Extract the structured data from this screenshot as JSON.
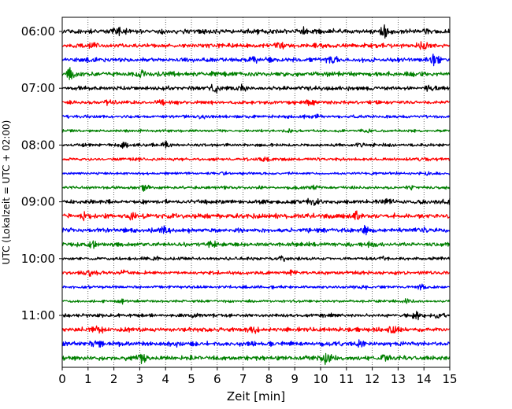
{
  "chart_data": {
    "type": "line",
    "title": "",
    "xlabel": "Zeit  [min]",
    "ylabel": "UTC (Lokalzeit = UTC + 02:00)",
    "xlim": [
      0,
      15
    ],
    "x_ticks": [
      "0",
      "1",
      "2",
      "3",
      "4",
      "5",
      "6",
      "7",
      "8",
      "9",
      "10",
      "11",
      "12",
      "13",
      "14",
      "15"
    ],
    "y_ticks": [
      "06:00",
      "07:00",
      "08:00",
      "09:00",
      "10:00",
      "11:00"
    ],
    "line_minutes": 15,
    "grid": "vertical-dotted",
    "trace_colors": [
      "#000000",
      "#ff0000",
      "#0000ff",
      "#008000"
    ],
    "traces": [
      {
        "start": "06:00",
        "amplitude": 0.55,
        "events": [
          [
            12.5,
            1.0
          ],
          [
            2.1,
            0.45
          ],
          [
            9.3,
            0.4
          ]
        ]
      },
      {
        "start": "06:15",
        "amplitude": 0.5,
        "events": [
          [
            1.3,
            0.45
          ],
          [
            8.4,
            0.55
          ],
          [
            14.0,
            0.5
          ]
        ]
      },
      {
        "start": "06:30",
        "amplitude": 0.5,
        "events": [
          [
            14.4,
            0.8
          ],
          [
            7.4,
            0.45
          ],
          [
            10.5,
            0.4
          ]
        ]
      },
      {
        "start": "06:45",
        "amplitude": 0.5,
        "events": [
          [
            0.3,
            0.7
          ],
          [
            3.0,
            0.6
          ],
          [
            4.1,
            0.5
          ]
        ]
      },
      {
        "start": "07:00",
        "amplitude": 0.45,
        "events": [
          [
            5.9,
            0.9
          ],
          [
            7.0,
            0.4
          ],
          [
            14.3,
            0.4
          ]
        ]
      },
      {
        "start": "07:15",
        "amplitude": 0.4,
        "events": [
          [
            1.8,
            0.4
          ],
          [
            3.8,
            0.4
          ],
          [
            9.5,
            0.35
          ]
        ]
      },
      {
        "start": "07:30",
        "amplitude": 0.35,
        "events": [
          [
            9.9,
            0.35
          ],
          [
            5.4,
            0.3
          ]
        ]
      },
      {
        "start": "07:45",
        "amplitude": 0.3,
        "events": [
          [
            8.8,
            0.3
          ],
          [
            11.8,
            0.3
          ]
        ]
      },
      {
        "start": "08:00",
        "amplitude": 0.35,
        "events": [
          [
            4.0,
            0.5
          ],
          [
            2.4,
            0.4
          ],
          [
            11.5,
            0.3
          ]
        ]
      },
      {
        "start": "08:15",
        "amplitude": 0.35,
        "events": [
          [
            7.9,
            0.35
          ],
          [
            13.9,
            0.35
          ]
        ]
      },
      {
        "start": "08:30",
        "amplitude": 0.3,
        "events": [
          [
            6.2,
            0.3
          ],
          [
            14.1,
            0.3
          ]
        ]
      },
      {
        "start": "08:45",
        "amplitude": 0.35,
        "events": [
          [
            3.2,
            0.4
          ],
          [
            9.8,
            0.35
          ],
          [
            13.5,
            0.3
          ]
        ]
      },
      {
        "start": "09:00",
        "amplitude": 0.45,
        "events": [
          [
            12.6,
            0.6
          ],
          [
            14.9,
            0.55
          ],
          [
            9.7,
            0.45
          ]
        ]
      },
      {
        "start": "09:15",
        "amplitude": 0.55,
        "events": [
          [
            0.9,
            0.6
          ],
          [
            2.6,
            0.5
          ],
          [
            11.4,
            0.6
          ]
        ]
      },
      {
        "start": "09:30",
        "amplitude": 0.5,
        "events": [
          [
            4.0,
            0.5
          ],
          [
            11.8,
            0.5
          ],
          [
            14.0,
            0.45
          ]
        ]
      },
      {
        "start": "09:45",
        "amplitude": 0.45,
        "events": [
          [
            5.8,
            0.5
          ],
          [
            1.2,
            0.4
          ],
          [
            12.0,
            0.4
          ]
        ]
      },
      {
        "start": "10:00",
        "amplitude": 0.35,
        "events": [
          [
            3.5,
            0.35
          ],
          [
            8.5,
            0.35
          ],
          [
            12.4,
            0.3
          ]
        ]
      },
      {
        "start": "10:15",
        "amplitude": 0.4,
        "events": [
          [
            1.0,
            0.7
          ],
          [
            2.3,
            0.5
          ],
          [
            8.9,
            0.3
          ]
        ]
      },
      {
        "start": "10:30",
        "amplitude": 0.35,
        "events": [
          [
            11.6,
            0.4
          ],
          [
            14.0,
            0.4
          ]
        ]
      },
      {
        "start": "10:45",
        "amplitude": 0.3,
        "events": [
          [
            13.3,
            0.35
          ],
          [
            2.3,
            0.3
          ]
        ]
      },
      {
        "start": "11:00",
        "amplitude": 0.4,
        "events": [
          [
            13.7,
            0.6
          ],
          [
            14.6,
            0.55
          ],
          [
            5.2,
            0.35
          ]
        ]
      },
      {
        "start": "11:15",
        "amplitude": 0.5,
        "events": [
          [
            1.4,
            0.5
          ],
          [
            7.4,
            0.45
          ],
          [
            12.8,
            0.45
          ]
        ]
      },
      {
        "start": "11:30",
        "amplitude": 0.5,
        "events": [
          [
            1.3,
            0.5
          ],
          [
            4.5,
            0.45
          ],
          [
            11.5,
            0.4
          ]
        ]
      },
      {
        "start": "11:45",
        "amplitude": 0.5,
        "events": [
          [
            10.2,
            1.0
          ],
          [
            3.1,
            0.55
          ],
          [
            12.5,
            0.45
          ]
        ]
      }
    ]
  }
}
